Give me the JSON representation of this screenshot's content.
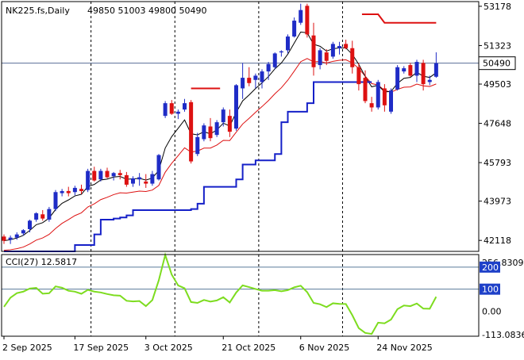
{
  "chart_data": [
    {
      "panel": "price",
      "type": "candlestick",
      "symbol": "NK225.fs,Daily",
      "ohlc_label": "49850 51003 49800 50490",
      "current_price_label": "50490",
      "current_price": 50490,
      "y_ticks": [
        "53178",
        "51323",
        "49503",
        "47648",
        "45793",
        "43973",
        "42118"
      ],
      "y_tick_values": [
        53178,
        51323,
        49503,
        47648,
        45793,
        43973,
        42118
      ],
      "ylim": [
        41600,
        53400
      ],
      "x_labels": [
        "2 Sep 2025",
        "17 Sep 2025",
        "3 Oct 2025",
        "21 Oct 2025",
        "6 Nov 2025",
        "24 Nov 2025"
      ],
      "x_label_index": [
        0,
        11,
        22,
        34,
        46,
        58
      ],
      "separator_index": [
        13,
        26,
        39,
        52
      ],
      "candles": [
        [
          42300,
          42400,
          41950,
          42100
        ],
        [
          42150,
          42350,
          41950,
          42250
        ],
        [
          42250,
          42500,
          42150,
          42400
        ],
        [
          42450,
          42650,
          42350,
          42600
        ],
        [
          42650,
          43100,
          42500,
          43050
        ],
        [
          43100,
          43450,
          43000,
          43400
        ],
        [
          43350,
          43550,
          43050,
          43150
        ],
        [
          43100,
          43700,
          43000,
          43600
        ],
        [
          43600,
          44500,
          43500,
          44400
        ],
        [
          44350,
          44550,
          44200,
          44450
        ],
        [
          44450,
          44650,
          44200,
          44350
        ],
        [
          44400,
          44700,
          44250,
          44600
        ],
        [
          44550,
          44750,
          44300,
          44450
        ],
        [
          44500,
          45500,
          44400,
          45400
        ],
        [
          45400,
          45600,
          44900,
          44950
        ],
        [
          45000,
          45500,
          44900,
          45400
        ],
        [
          45400,
          45550,
          45050,
          45100
        ],
        [
          45150,
          45350,
          44950,
          45300
        ],
        [
          45300,
          45450,
          45000,
          45200
        ],
        [
          45200,
          45350,
          44650,
          44750
        ],
        [
          44800,
          45150,
          44650,
          45050
        ],
        [
          45000,
          45300,
          44700,
          45100
        ],
        [
          44900,
          45250,
          44600,
          44800
        ],
        [
          44800,
          45400,
          44700,
          45250
        ],
        [
          45000,
          46200,
          44950,
          46150
        ],
        [
          48000,
          48700,
          47900,
          48600
        ],
        [
          48600,
          48750,
          48050,
          48100
        ],
        [
          48100,
          48300,
          47850,
          48200
        ],
        [
          48300,
          48800,
          48200,
          48600
        ],
        [
          48650,
          48750,
          45750,
          45850
        ],
        [
          46200,
          47200,
          46100,
          47000
        ],
        [
          46900,
          47650,
          46800,
          47550
        ],
        [
          47500,
          47900,
          46800,
          46950
        ],
        [
          47100,
          47800,
          47000,
          47700
        ],
        [
          47700,
          48400,
          47500,
          48300
        ],
        [
          48000,
          48300,
          47000,
          47250
        ],
        [
          47400,
          49500,
          47300,
          49450
        ],
        [
          49300,
          50500,
          48800,
          49800
        ],
        [
          49800,
          50300,
          49400,
          49550
        ],
        [
          49700,
          50000,
          49300,
          49900
        ],
        [
          49600,
          50200,
          49300,
          50100
        ],
        [
          50100,
          50550,
          49700,
          50450
        ],
        [
          50300,
          51000,
          50200,
          50950
        ],
        [
          51000,
          51100,
          50800,
          51050
        ],
        [
          51100,
          51850,
          50950,
          51750
        ],
        [
          51750,
          52650,
          51700,
          52500
        ],
        [
          52400,
          53300,
          52300,
          53000
        ],
        [
          53200,
          53300,
          51700,
          51850
        ],
        [
          51800,
          52400,
          49900,
          50300
        ],
        [
          50400,
          51200,
          50200,
          51100
        ],
        [
          51000,
          51150,
          50400,
          50600
        ],
        [
          50800,
          51500,
          50700,
          51400
        ],
        [
          51200,
          51500,
          50900,
          51300
        ],
        [
          51400,
          51600,
          51150,
          51200
        ],
        [
          51200,
          51550,
          50000,
          50300
        ],
        [
          50300,
          50500,
          49200,
          49500
        ],
        [
          49800,
          50150,
          48600,
          48700
        ],
        [
          48600,
          48900,
          48200,
          48400
        ],
        [
          48400,
          49700,
          48300,
          49600
        ],
        [
          49300,
          49500,
          48200,
          48500
        ],
        [
          48200,
          49300,
          48100,
          49200
        ],
        [
          49250,
          50400,
          49200,
          50300
        ],
        [
          50100,
          50350,
          50000,
          50250
        ],
        [
          50400,
          50500,
          49850,
          49900
        ],
        [
          49900,
          50650,
          49600,
          50550
        ],
        [
          50500,
          50650,
          49200,
          49500
        ],
        [
          49600,
          49900,
          49450,
          49700
        ],
        [
          49850,
          51003,
          49800,
          50490
        ]
      ],
      "line_colors": {
        "up_candle": "#1f2cc6",
        "down_candle": "#dd1111",
        "fast_line": "#000000",
        "slow_line": "#dd1111",
        "step_up": "#1520c8",
        "step_down": "#dd1111",
        "current_price": "#5a6e96"
      }
    },
    {
      "panel": "indicator",
      "type": "line",
      "label": "CCI(27) 12.5817",
      "scale_max_label": "256.8309",
      "scale_min_label": "-113.0836",
      "levels": [
        "200",
        "100",
        "0.00"
      ],
      "level_values": [
        200,
        100,
        0
      ],
      "ylim": [
        -113.0836,
        256.8309
      ],
      "line_color": "#7ddc1f"
    }
  ]
}
